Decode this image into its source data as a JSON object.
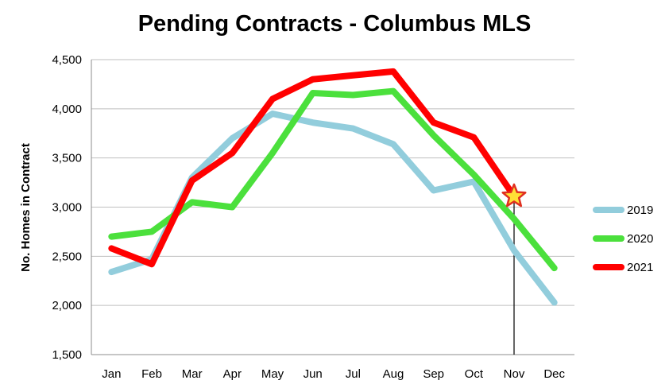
{
  "chart_data": {
    "type": "line",
    "title": "Pending Contracts - Columbus MLS",
    "xlabel": "",
    "ylabel": "No. Homes in Contract",
    "categories": [
      "Jan",
      "Feb",
      "Mar",
      "Apr",
      "May",
      "Jun",
      "Jul",
      "Aug",
      "Sep",
      "Oct",
      "Nov",
      "Dec"
    ],
    "ylim": [
      1500,
      4500
    ],
    "yticks": [
      "1,500",
      "2,000",
      "2,500",
      "3,000",
      "3,500",
      "4,000",
      "4,500"
    ],
    "ytick_values": [
      1500,
      2000,
      2500,
      3000,
      3500,
      4000,
      4500
    ],
    "grid": true,
    "legend_position": "right",
    "series": [
      {
        "name": "2019",
        "color": "#92CDDC",
        "values": [
          2340,
          2470,
          3300,
          3700,
          3950,
          3860,
          3800,
          3640,
          3170,
          3260,
          2560,
          2030
        ]
      },
      {
        "name": "2020",
        "color": "#4BE03C",
        "values": [
          2700,
          2750,
          3050,
          3000,
          3550,
          4160,
          4140,
          4180,
          3730,
          3330,
          2880,
          2380
        ]
      },
      {
        "name": "2021",
        "color": "#FF0000",
        "values": [
          2580,
          2420,
          3270,
          3550,
          4100,
          4300,
          4340,
          4380,
          3860,
          3710,
          3110,
          null
        ]
      }
    ],
    "marker": {
      "type": "star-icon",
      "series": "2021",
      "category": "Nov",
      "fill": "#FFE135",
      "stroke": "#E03020"
    },
    "reference_line": {
      "category": "Nov",
      "color": "#000000"
    }
  }
}
